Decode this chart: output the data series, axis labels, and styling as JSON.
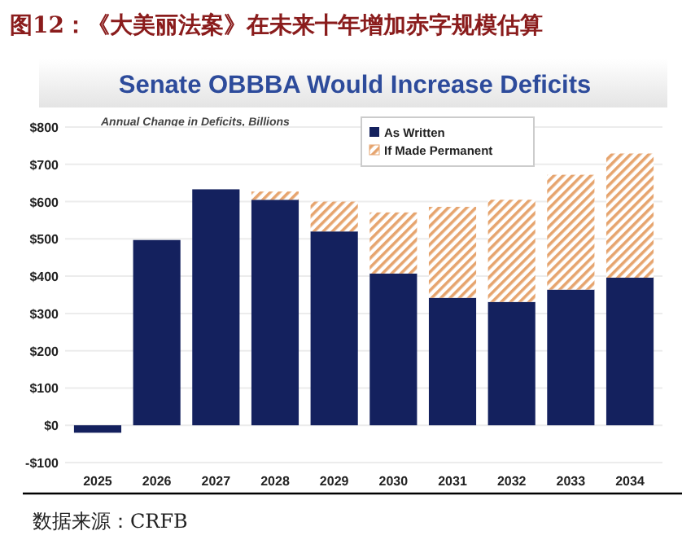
{
  "chart_data": {
    "type": "bar",
    "title": "图12：《大美丽法案》在未来十年增加赤字规模估算",
    "subtitle": "Senate OBBBA Would Increase Deficits",
    "ylabel": "Annual Change in Deficits, Billions",
    "annotations": [
      "数据来源：CRFB"
    ],
    "categories": [
      "2025",
      "2026",
      "2027",
      "2028",
      "2029",
      "2030",
      "2031",
      "2032",
      "2033",
      "2034"
    ],
    "stacked": true,
    "series": [
      {
        "name": "As Written",
        "color": "#14215e",
        "values": [
          -20,
          497,
          633,
          605,
          520,
          407,
          342,
          331,
          364,
          396
        ]
      },
      {
        "name": "If Made Permanent",
        "color": "#e6a46e",
        "values": [
          null,
          null,
          null,
          22,
          80,
          164,
          244,
          274,
          308,
          333
        ]
      }
    ],
    "ylim": [
      -100,
      800
    ],
    "yticks": [
      {
        "value": -100,
        "label": "-$100"
      },
      {
        "value": 0,
        "label": "$0"
      },
      {
        "value": 100,
        "label": "$100"
      },
      {
        "value": 200,
        "label": "$200"
      },
      {
        "value": 300,
        "label": "$300"
      },
      {
        "value": 400,
        "label": "$400"
      },
      {
        "value": 500,
        "label": "$500"
      },
      {
        "value": 600,
        "label": "$600"
      },
      {
        "value": 700,
        "label": "$700"
      },
      {
        "value": 800,
        "label": "$800"
      }
    ],
    "grid": "y",
    "legend": "top right"
  }
}
